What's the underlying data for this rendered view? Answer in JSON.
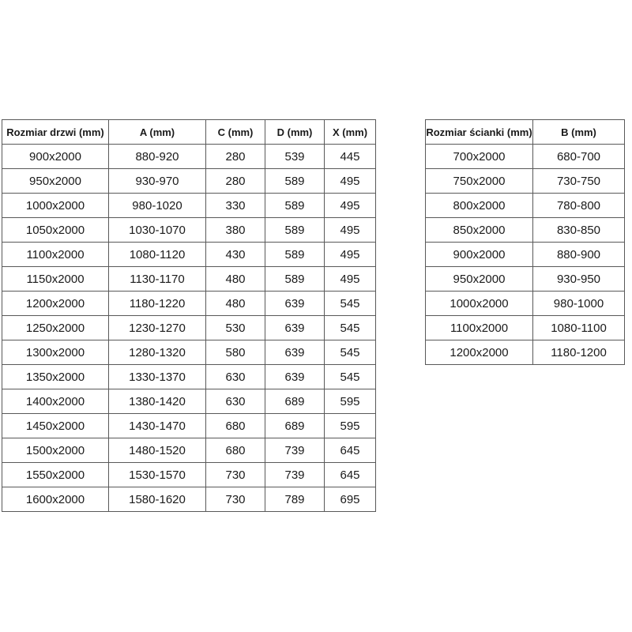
{
  "colors": {
    "background": "#ffffff",
    "table_border": "#595959",
    "text": "#1a1a1a"
  },
  "chart_data": [
    {
      "type": "table",
      "name": "door-sizes",
      "columns": [
        "Rozmiar drzwi (mm)",
        "A (mm)",
        "C (mm)",
        "D (mm)",
        "X (mm)"
      ],
      "rows": [
        [
          "900x2000",
          "880-920",
          "280",
          "539",
          "445"
        ],
        [
          "950x2000",
          "930-970",
          "280",
          "589",
          "495"
        ],
        [
          "1000x2000",
          "980-1020",
          "330",
          "589",
          "495"
        ],
        [
          "1050x2000",
          "1030-1070",
          "380",
          "589",
          "495"
        ],
        [
          "1100x2000",
          "1080-1120",
          "430",
          "589",
          "495"
        ],
        [
          "1150x2000",
          "1130-1170",
          "480",
          "589",
          "495"
        ],
        [
          "1200x2000",
          "1180-1220",
          "480",
          "639",
          "545"
        ],
        [
          "1250x2000",
          "1230-1270",
          "530",
          "639",
          "545"
        ],
        [
          "1300x2000",
          "1280-1320",
          "580",
          "639",
          "545"
        ],
        [
          "1350x2000",
          "1330-1370",
          "630",
          "639",
          "545"
        ],
        [
          "1400x2000",
          "1380-1420",
          "630",
          "689",
          "595"
        ],
        [
          "1450x2000",
          "1430-1470",
          "680",
          "689",
          "595"
        ],
        [
          "1500x2000",
          "1480-1520",
          "680",
          "739",
          "645"
        ],
        [
          "1550x2000",
          "1530-1570",
          "730",
          "739",
          "645"
        ],
        [
          "1600x2000",
          "1580-1620",
          "730",
          "789",
          "695"
        ]
      ],
      "layout": {
        "grid": true,
        "header_bold": true,
        "text_align": "center"
      }
    },
    {
      "type": "table",
      "name": "wall-sizes",
      "columns": [
        "Rozmiar ścianki (mm)",
        "B (mm)"
      ],
      "rows": [
        [
          "700x2000",
          "680-700"
        ],
        [
          "750x2000",
          "730-750"
        ],
        [
          "800x2000",
          "780-800"
        ],
        [
          "850x2000",
          "830-850"
        ],
        [
          "900x2000",
          "880-900"
        ],
        [
          "950x2000",
          "930-950"
        ],
        [
          "1000x2000",
          "980-1000"
        ],
        [
          "1100x2000",
          "1080-1100"
        ],
        [
          "1200x2000",
          "1180-1200"
        ]
      ],
      "layout": {
        "grid": true,
        "header_bold": true,
        "text_align": "center"
      }
    }
  ]
}
